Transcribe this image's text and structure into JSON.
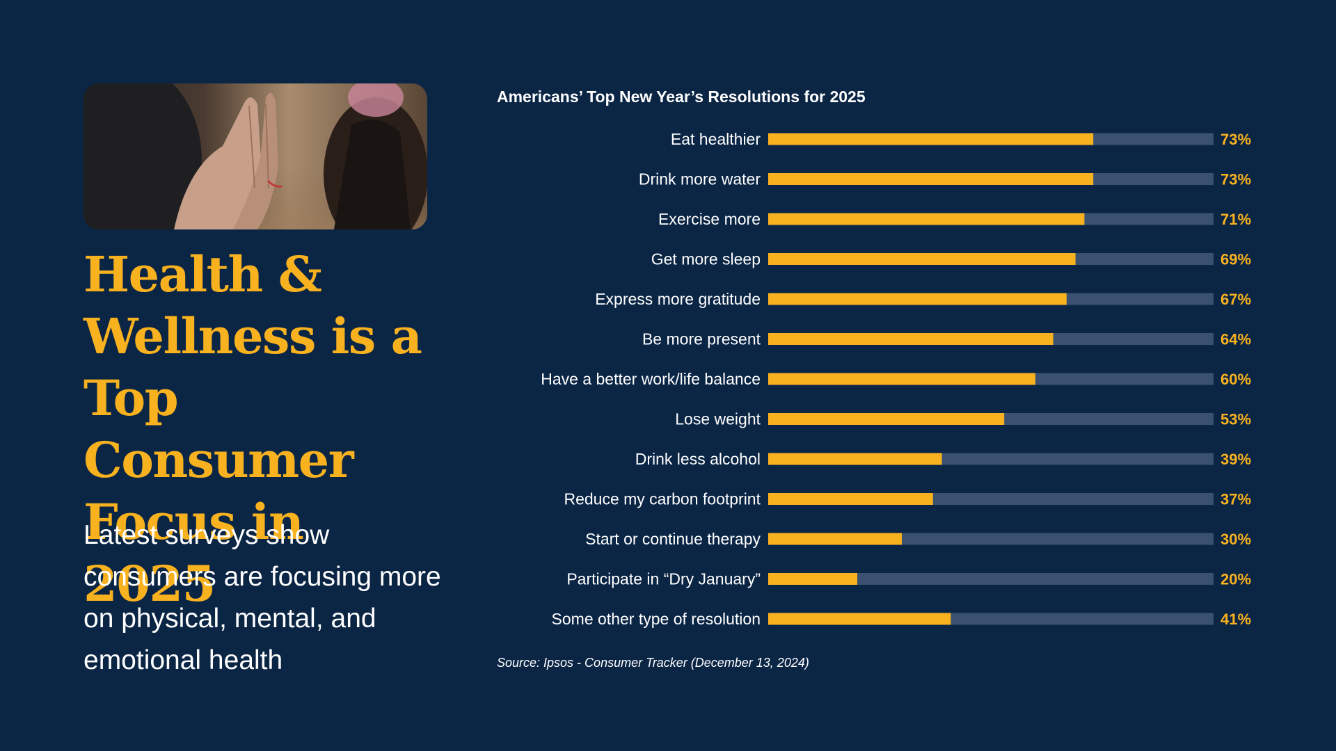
{
  "headline": "Health & Wellness is a Top Consumer Focus in 2025",
  "subtext": "Latest surveys show consumers are focusing more on physical, mental, and emotional health",
  "source": "Source: Ipsos - Consumer Tracker (December 13, 2024)",
  "colors": {
    "background": "#0b2545",
    "accent": "#f9b21f",
    "track": "#3a5170",
    "text": "#ffffff"
  },
  "photo": {
    "icon": "prayer-hands-photo"
  },
  "chart_data": {
    "type": "bar",
    "orientation": "horizontal",
    "title": "Americans’ Top New Year’s Resolutions for 2025",
    "xlim": [
      0,
      100
    ],
    "grid": false,
    "legend": "none",
    "categories": [
      "Eat healthier",
      "Drink more water",
      "Exercise more",
      "Get more sleep",
      "Express more gratitude",
      "Be more present",
      "Have a better work/life balance",
      "Lose weight",
      "Drink less alcohol",
      "Reduce my carbon footprint",
      "Start or continue therapy",
      "Participate in “Dry January”",
      "Some other type of resolution"
    ],
    "values": [
      73,
      73,
      71,
      69,
      67,
      64,
      60,
      53,
      39,
      37,
      30,
      20,
      41
    ],
    "value_labels": [
      "73%",
      "73%",
      "71%",
      "69%",
      "67%",
      "64%",
      "60%",
      "53%",
      "39%",
      "37%",
      "30%",
      "20%",
      "41%"
    ]
  }
}
